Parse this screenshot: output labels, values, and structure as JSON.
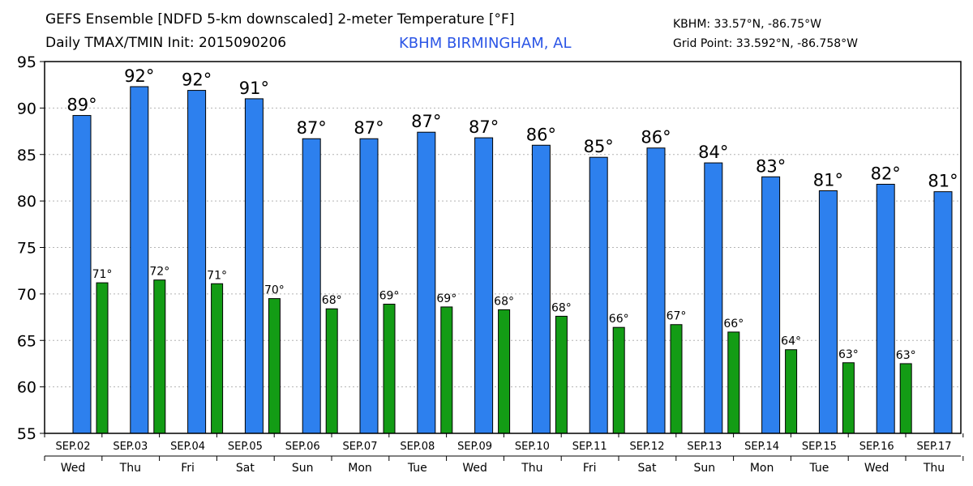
{
  "header": {
    "title_line1": "GEFS Ensemble [NDFD 5-km downscaled] 2-meter Temperature [°F]",
    "title_line2": "Daily TMAX/TMIN Init: 2015090206",
    "station_name": "KBHM BIRMINGHAM, AL",
    "station_coords": "KBHM: 33.57°N, -86.75°W",
    "grid_point": "Grid Point: 33.592°N, -86.758°W"
  },
  "chart_data": {
    "type": "bar",
    "ylim": [
      55,
      95
    ],
    "yticks": [
      55,
      60,
      65,
      70,
      75,
      80,
      85,
      90,
      95
    ],
    "grid": true,
    "categories": [
      "SEP.02",
      "SEP.03",
      "SEP.04",
      "SEP.05",
      "SEP.06",
      "SEP.07",
      "SEP.08",
      "SEP.09",
      "SEP.10",
      "SEP.11",
      "SEP.12",
      "SEP.13",
      "SEP.14",
      "SEP.15",
      "SEP.16",
      "SEP.17"
    ],
    "weekdays": [
      "Wed",
      "Thu",
      "Fri",
      "Sat",
      "Sun",
      "Mon",
      "Tue",
      "Wed",
      "Thu",
      "Fri",
      "Sat",
      "Sun",
      "Mon",
      "Tue",
      "Wed",
      "Thu"
    ],
    "series": [
      {
        "color": "#2d80ee",
        "values": [
          89.2,
          92.3,
          91.9,
          91.0,
          86.7,
          86.7,
          87.4,
          86.8,
          86.0,
          84.7,
          85.7,
          84.1,
          82.6,
          81.1,
          81.8,
          81.0
        ],
        "labels": [
          "89°",
          "92°",
          "92°",
          "91°",
          "87°",
          "87°",
          "87°",
          "87°",
          "86°",
          "85°",
          "86°",
          "84°",
          "83°",
          "81°",
          "82°",
          "81°"
        ]
      },
      {
        "color": "#139c15",
        "values": [
          71.2,
          71.5,
          71.1,
          69.5,
          68.4,
          68.9,
          68.6,
          68.3,
          67.6,
          66.4,
          66.7,
          65.9,
          64.0,
          62.6,
          62.5,
          null
        ],
        "labels": [
          "71°",
          "72°",
          "71°",
          "70°",
          "68°",
          "69°",
          "69°",
          "68°",
          "68°",
          "66°",
          "67°",
          "66°",
          "64°",
          "63°",
          "63°",
          ""
        ]
      }
    ]
  }
}
